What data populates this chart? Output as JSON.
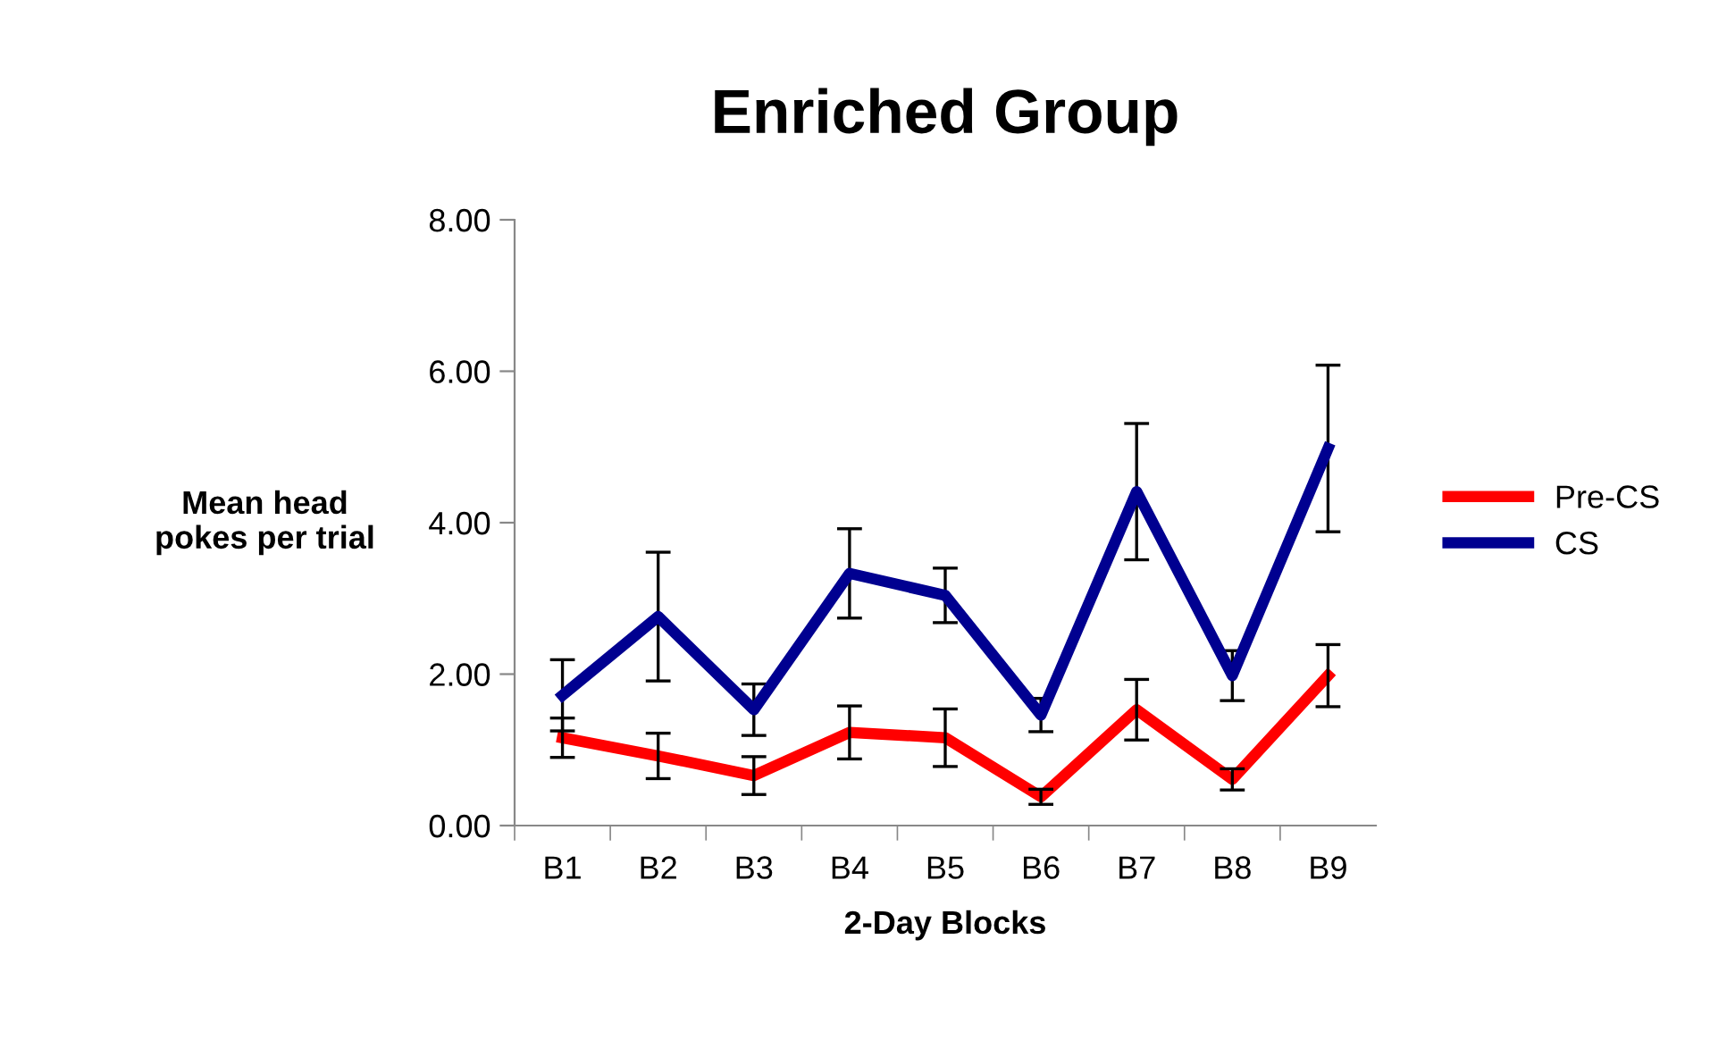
{
  "chart_data": {
    "type": "line",
    "title": "Enriched Group",
    "xlabel": "2-Day Blocks",
    "ylabel": "Mean head\npokes per trial",
    "categories": [
      "B1",
      "B2",
      "B3",
      "B4",
      "B5",
      "B6",
      "B7",
      "B8",
      "B9"
    ],
    "series": [
      {
        "name": "Pre-CS",
        "color": "#ff0000",
        "values": [
          1.16,
          0.92,
          0.66,
          1.23,
          1.16,
          0.38,
          1.53,
          0.61,
          1.98
        ],
        "errors": [
          0.26,
          0.3,
          0.25,
          0.35,
          0.38,
          0.1,
          0.4,
          0.14,
          0.41
        ]
      },
      {
        "name": "CS",
        "color": "#000090",
        "values": [
          1.72,
          2.76,
          1.53,
          3.33,
          3.04,
          1.46,
          4.41,
          1.98,
          4.98
        ],
        "errors": [
          0.47,
          0.85,
          0.34,
          0.59,
          0.36,
          0.22,
          0.9,
          0.33,
          1.1
        ]
      }
    ],
    "ylim": [
      0,
      8
    ],
    "yticks": [
      {
        "value": 0,
        "label": "0.00"
      },
      {
        "value": 2,
        "label": "2.00"
      },
      {
        "value": 4,
        "label": "4.00"
      },
      {
        "value": 6,
        "label": "6.00"
      },
      {
        "value": 8,
        "label": "8.00"
      }
    ],
    "grid": false,
    "legend": "right",
    "marker": "none",
    "line_style": "solid"
  }
}
